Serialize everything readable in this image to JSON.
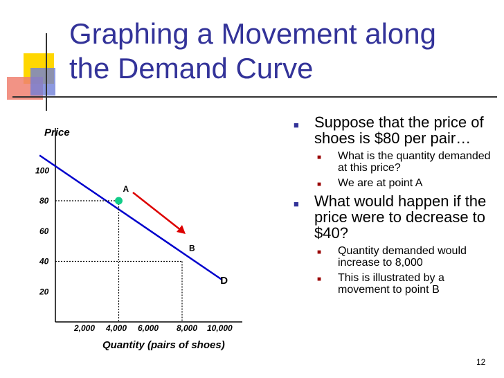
{
  "slide": {
    "title": "Graphing a Movement along the Demand Curve",
    "page_number": "12",
    "colors": {
      "title": "#333399",
      "curve": "#0000cc",
      "arrow": "#dd0000",
      "point": "#11cc88"
    }
  },
  "bullets": [
    {
      "text": "Suppose that the price of shoes is $80 per pair…",
      "sub": [
        "What is the quantity demanded at this price?",
        "We are at point A"
      ]
    },
    {
      "text": "What would happen if the price were to decrease to $40?",
      "sub": [
        "Quantity demanded would increase to 8,000",
        "This is illustrated by a movement to point B"
      ]
    }
  ],
  "chart_data": {
    "type": "line",
    "ylabel": "Price",
    "xlabel": "Quantity (pairs of shoes)",
    "x_ticks": [
      "2,000",
      "4,000",
      "6,000",
      "8,000",
      "10,000"
    ],
    "y_ticks": [
      "20",
      "40",
      "60",
      "80",
      "100"
    ],
    "xlim": [
      0,
      11000
    ],
    "ylim": [
      0,
      115
    ],
    "series": [
      {
        "name": "D",
        "points": [
          [
            -1000,
            110
          ],
          [
            10500,
            28
          ]
        ]
      }
    ],
    "points": [
      {
        "label": "A",
        "x": 4000,
        "y": 80
      },
      {
        "label": "B",
        "x": 8000,
        "y": 40
      }
    ],
    "arrow": {
      "from": "A",
      "to": "B"
    },
    "grid": false
  }
}
